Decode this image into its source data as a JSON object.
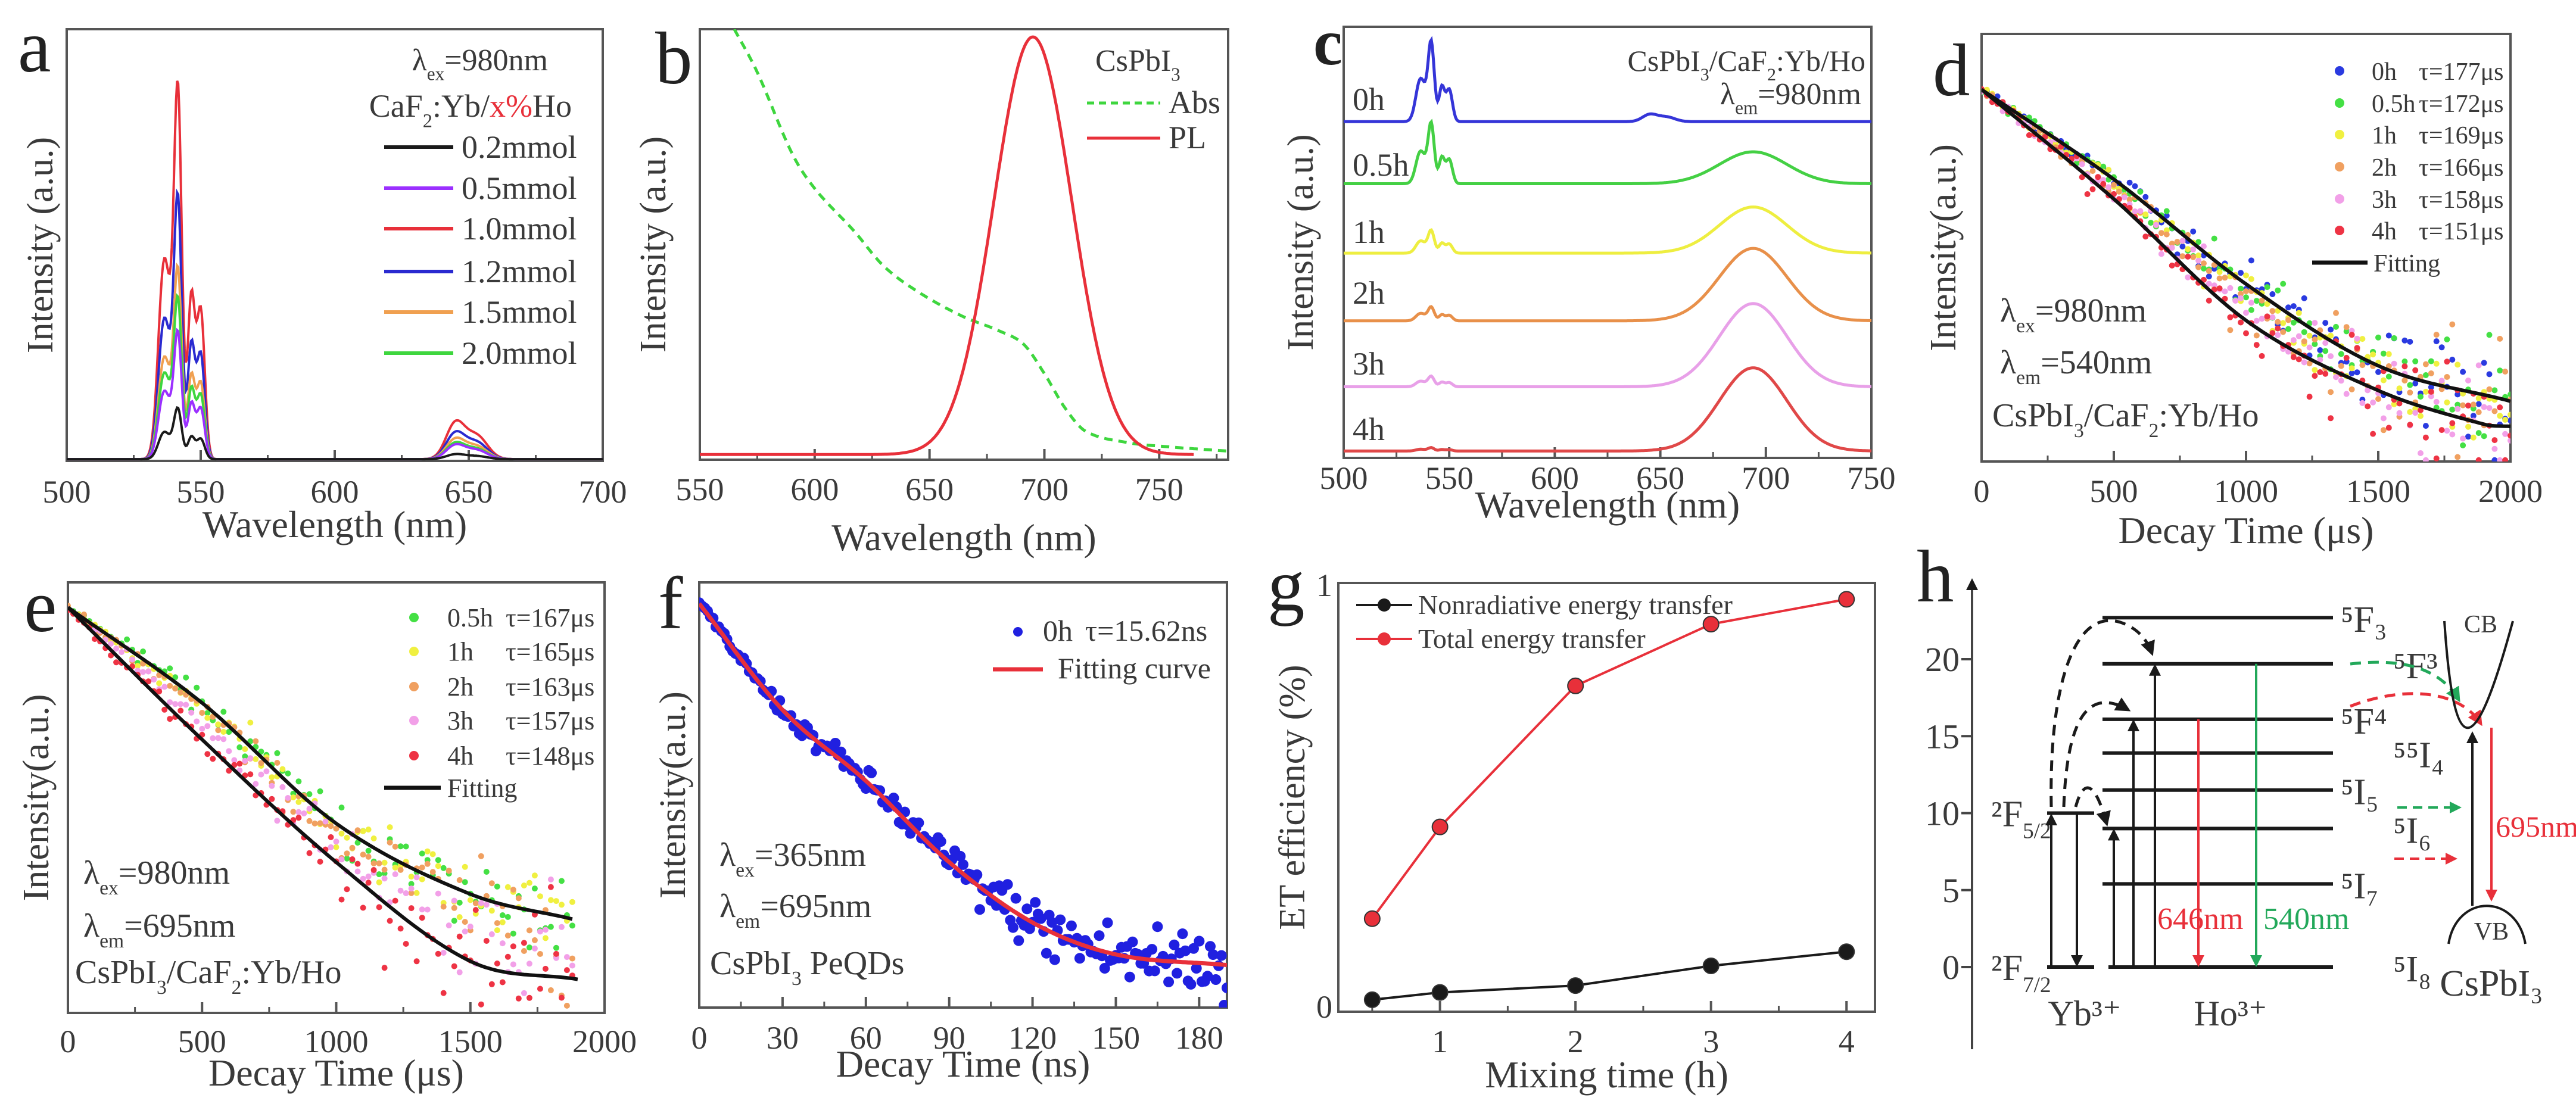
{
  "panel_labels": [
    "a",
    "b",
    "c",
    "d",
    "e",
    "f",
    "g",
    "h"
  ],
  "chart_data": [
    {
      "panel": "a",
      "type": "line",
      "xlabel": "Wavelength (nm)",
      "ylabel": "Intensity (a.u.)",
      "xlim": [
        500,
        700
      ],
      "ylim": [
        0,
        1
      ],
      "xticks": [
        500,
        550,
        600,
        650,
        700
      ],
      "grid": false,
      "legend": "top-right",
      "annotation_lambda": {
        "symbol": "λ",
        "sub": "ex",
        "text": "=980nm"
      },
      "legend_title": {
        "pre": "CaF",
        "sub": "2",
        "mid": ":Yb/",
        "highlight": "x%",
        "post": "Ho",
        "highlight_color": "#e8303a"
      },
      "series": [
        {
          "name": "0.2mmol",
          "color": "#1a1a1a",
          "intensity_540nm": 0.12,
          "intensity_646nm": 0.012
        },
        {
          "name": "0.5mmol",
          "color": "#9b30ff",
          "intensity_540nm": 0.3,
          "intensity_646nm": 0.035
        },
        {
          "name": "1.0mmol",
          "color": "#e8303a",
          "intensity_540nm": 0.88,
          "intensity_646nm": 0.09
        },
        {
          "name": "1.2mmol",
          "color": "#2a2ad0",
          "intensity_540nm": 0.62,
          "intensity_646nm": 0.065
        },
        {
          "name": "1.5mmol",
          "color": "#f0a050",
          "intensity_540nm": 0.45,
          "intensity_646nm": 0.05
        },
        {
          "name": "2.0mmol",
          "color": "#3ed63e",
          "intensity_540nm": 0.38,
          "intensity_646nm": 0.04
        }
      ]
    },
    {
      "panel": "b",
      "type": "line",
      "xlabel": "Wavelength (nm)",
      "ylabel": "Intensity (a.u.)",
      "xlim": [
        550,
        780
      ],
      "ylim": [
        0,
        1
      ],
      "xticks": [
        550,
        600,
        650,
        700,
        750
      ],
      "grid": false,
      "legend": "top-right",
      "legend_title": {
        "pre": "CsPbI",
        "sub": "3"
      },
      "series": [
        {
          "name": "Abs",
          "color": "#3ed63e",
          "style": "dashed",
          "points": [
            [
              565,
              1.0
            ],
            [
              575,
              0.9
            ],
            [
              590,
              0.713
            ],
            [
              600,
              0.63
            ],
            [
              617,
              0.532
            ],
            [
              630,
              0.45
            ],
            [
              645,
              0.39
            ],
            [
              664,
              0.334
            ],
            [
              680,
              0.3
            ],
            [
              691,
              0.268
            ],
            [
              700,
              0.2
            ],
            [
              709,
              0.12
            ],
            [
              718,
              0.066
            ],
            [
              736,
              0.04
            ],
            [
              754,
              0.03
            ],
            [
              780,
              0.02
            ]
          ]
        },
        {
          "name": "PL",
          "color": "#e8303a",
          "style": "solid",
          "peak_nm": 695,
          "peak_intensity": 0.97,
          "fwhm_nm": 40,
          "range_nm": [
            550,
            765
          ]
        }
      ]
    },
    {
      "panel": "c",
      "type": "line",
      "xlabel": "Wavelength (nm)",
      "ylabel": "Intensity (a.u.)",
      "xlim": [
        500,
        750
      ],
      "ylim": [
        0,
        1
      ],
      "xticks": [
        500,
        550,
        600,
        650,
        700,
        750
      ],
      "grid": false,
      "annotation_sample": {
        "pre": "CsPbI",
        "sub1": "3",
        "mid": "/CaF",
        "sub2": "2",
        "post": ":Yb/Ho"
      },
      "annotation_lambda": {
        "symbol": "λ",
        "sub": "em",
        "text": "=980nm"
      },
      "series": [
        {
          "name": "0h",
          "color": "#3535d8",
          "baseline": 0.78,
          "intensity_540nm": 0.19,
          "intensity_646nm": 0.018,
          "intensity_695nm": 0.0
        },
        {
          "name": "0.5h",
          "color": "#44d044",
          "baseline": 0.636,
          "intensity_540nm": 0.144,
          "intensity_646nm": 0.0,
          "intensity_695nm": 0.074
        },
        {
          "name": "1h",
          "color": "#eeee40",
          "baseline": 0.475,
          "intensity_540nm": 0.054,
          "intensity_646nm": 0.0,
          "intensity_695nm": 0.107
        },
        {
          "name": "2h",
          "color": "#e8904a",
          "baseline": 0.318,
          "intensity_540nm": 0.033,
          "intensity_646nm": 0.0,
          "intensity_695nm": 0.168
        },
        {
          "name": "3h",
          "color": "#e8a0e8",
          "baseline": 0.165,
          "intensity_540nm": 0.025,
          "intensity_646nm": 0.0,
          "intensity_695nm": 0.193
        },
        {
          "name": "4h",
          "color": "#e04848",
          "baseline": 0.016,
          "intensity_540nm": 0.008,
          "intensity_646nm": 0.0,
          "intensity_695nm": 0.193
        }
      ]
    },
    {
      "panel": "d",
      "type": "scatter",
      "xlabel": "Decay Time (μs)",
      "ylabel": "Intensity(a.u.)",
      "xlim": [
        0,
        2000
      ],
      "ylim": [
        0,
        1
      ],
      "xticks": [
        0,
        500,
        1000,
        1500,
        2000
      ],
      "grid": false,
      "legend": "top-right",
      "series": [
        {
          "name": "0h",
          "tau": "τ=177μs",
          "tau_us": 177,
          "color": "#2a3ae0"
        },
        {
          "name": "0.5h",
          "tau": "τ=172μs",
          "tau_us": 172,
          "color": "#44e044"
        },
        {
          "name": "1h",
          "tau": "τ=169μs",
          "tau_us": 169,
          "color": "#f0f040"
        },
        {
          "name": "2h",
          "tau": "τ=166μs",
          "tau_us": 166,
          "color": "#f0a060"
        },
        {
          "name": "3h",
          "tau": "τ=158μs",
          "tau_us": 158,
          "color": "#f2a0e8"
        },
        {
          "name": "4h",
          "tau": "τ=151μs",
          "tau_us": 151,
          "color": "#ee3344"
        }
      ],
      "fit_label": "Fitting",
      "fit_color": "#111111",
      "fit_upper": [
        [
          0,
          0.87
        ],
        [
          500,
          0.66
        ],
        [
          1000,
          0.415
        ],
        [
          1500,
          0.224
        ],
        [
          2000,
          0.141
        ]
      ],
      "fit_lower": [
        [
          0,
          0.87
        ],
        [
          500,
          0.614
        ],
        [
          1000,
          0.33
        ],
        [
          1500,
          0.166
        ],
        [
          1900,
          0.087
        ],
        [
          2000,
          0.082
        ]
      ],
      "annotations": {
        "ex": {
          "symbol": "λ",
          "sub": "ex",
          "text": "=980nm"
        },
        "em": {
          "symbol": "λ",
          "sub": "em",
          "text": "=540nm"
        },
        "sample": {
          "pre": "CsPbI",
          "sub1": "3",
          "mid": "/CaF",
          "sub2": "2",
          "post": ":Yb/Ho"
        }
      }
    },
    {
      "panel": "e",
      "type": "scatter",
      "xlabel": "Decay Time (μs)",
      "ylabel": "Intensity(a.u.)",
      "xlim": [
        0,
        2000
      ],
      "ylim": [
        0,
        1
      ],
      "xticks": [
        0,
        500,
        1000,
        1500,
        2000
      ],
      "grid": false,
      "legend": "top-right",
      "series": [
        {
          "name": "0.5h",
          "tau": "τ=167μs",
          "tau_us": 167,
          "color": "#44e044"
        },
        {
          "name": "1h",
          "tau": "τ=165μs",
          "tau_us": 165,
          "color": "#f0f040"
        },
        {
          "name": "2h",
          "tau": "τ=163μs",
          "tau_us": 163,
          "color": "#f0a060"
        },
        {
          "name": "3h",
          "tau": "τ=157μs",
          "tau_us": 157,
          "color": "#f2a0e8"
        },
        {
          "name": "4h",
          "tau": "τ=148μs",
          "tau_us": 148,
          "color": "#ee3344"
        }
      ],
      "fit_label": "Fitting",
      "fit_color": "#111111",
      "fit_upper": [
        [
          0,
          0.942
        ],
        [
          500,
          0.72
        ],
        [
          1000,
          0.44
        ],
        [
          1500,
          0.276
        ],
        [
          1880,
          0.218
        ]
      ],
      "fit_lower": [
        [
          0,
          0.942
        ],
        [
          500,
          0.635
        ],
        [
          1000,
          0.35
        ],
        [
          1500,
          0.12
        ],
        [
          1900,
          0.078
        ]
      ],
      "annotations": {
        "ex": {
          "symbol": "λ",
          "sub": "ex",
          "text": "=980nm"
        },
        "em": {
          "symbol": "λ",
          "sub": "em",
          "text": "=695nm"
        },
        "sample": {
          "pre": "CsPbI",
          "sub1": "3",
          "mid": "/CaF",
          "sub2": "2",
          "post": ":Yb/Ho"
        }
      }
    },
    {
      "panel": "f",
      "type": "scatter",
      "xlabel": "Decay Time (ns)",
      "ylabel": "Intensity(a.u.)",
      "xlim": [
        0,
        190
      ],
      "ylim": [
        0,
        1
      ],
      "xticks": [
        0,
        30,
        60,
        90,
        120,
        150,
        180
      ],
      "grid": false,
      "legend": "top-right",
      "series": [
        {
          "name": "0h",
          "tau": "τ=15.62ns",
          "tau_ns": 15.62,
          "color": "#2020e0"
        }
      ],
      "fit_label": "Fitting curve",
      "fit_color": "#e8303a",
      "fit": [
        [
          0,
          0.95
        ],
        [
          30,
          0.7
        ],
        [
          60,
          0.533
        ],
        [
          90,
          0.342
        ],
        [
          120,
          0.2
        ],
        [
          150,
          0.125
        ],
        [
          190,
          0.1
        ]
      ],
      "annotations": {
        "ex": {
          "symbol": "λ",
          "sub": "ex",
          "text": "=365nm"
        },
        "em": {
          "symbol": "λ",
          "sub": "em",
          "text": "=695nm"
        },
        "sample": {
          "pre": "CsPbI",
          "sub1": "3",
          "post": " PeQDs"
        }
      }
    },
    {
      "panel": "g",
      "type": "line",
      "xlabel": "Mixing time (h)",
      "ylabel": "ET efficiency (%)",
      "xlim": [
        0.25,
        4.21
      ],
      "ylim": [
        0,
        1
      ],
      "xticks": [
        1,
        2,
        3,
        4
      ],
      "yticks": [
        0,
        1
      ],
      "grid": false,
      "legend": "top-left",
      "x": [
        0.5,
        1,
        2,
        3,
        4
      ],
      "series": [
        {
          "name": "Nonradiative energy transfer",
          "color": "#1a1a1a",
          "values": [
            0.028,
            0.045,
            0.061,
            0.107,
            0.14
          ]
        },
        {
          "name": "Total energy transfer",
          "color": "#e8303a",
          "values": [
            0.217,
            0.431,
            0.76,
            0.904,
            0.962
          ]
        }
      ]
    },
    {
      "panel": "h",
      "type": "diagram",
      "yticks": [
        0,
        5,
        10,
        15,
        20
      ],
      "yb_levels": [
        {
          "label": "²F",
          "sub": "7/2",
          "energy": 0
        },
        {
          "label": "²F",
          "sub": "5/2",
          "energy": 10
        }
      ],
      "ho_levels": [
        {
          "label": "⁵F₃",
          "energy": 22.7
        },
        {
          "label": "⁵F³",
          "energy": 19.7
        },
        {
          "label": "⁵F⁴",
          "energy": 16.1
        },
        {
          "label": "⁵⁵I₄",
          "energy": 13.9
        },
        {
          "label": "⁵I₅",
          "energy": 11.5
        },
        {
          "label": "⁵I₆",
          "energy": 9.0
        },
        {
          "label": "⁵I₇",
          "energy": 5.4
        },
        {
          "label": "⁵I₈",
          "energy": 0
        }
      ],
      "ion_labels": {
        "yb": "Yb³⁺",
        "ho": "Ho³⁺"
      },
      "emission_labels": {
        "red": "646nm",
        "green": "540nm",
        "perovskite": "695nm"
      },
      "band_labels": {
        "cb": "CB",
        "vb": "VB",
        "material": "CsPbI₃"
      },
      "colors": {
        "red": "#e8303a",
        "green": "#22a85a",
        "black": "#1a1a1a"
      }
    }
  ]
}
